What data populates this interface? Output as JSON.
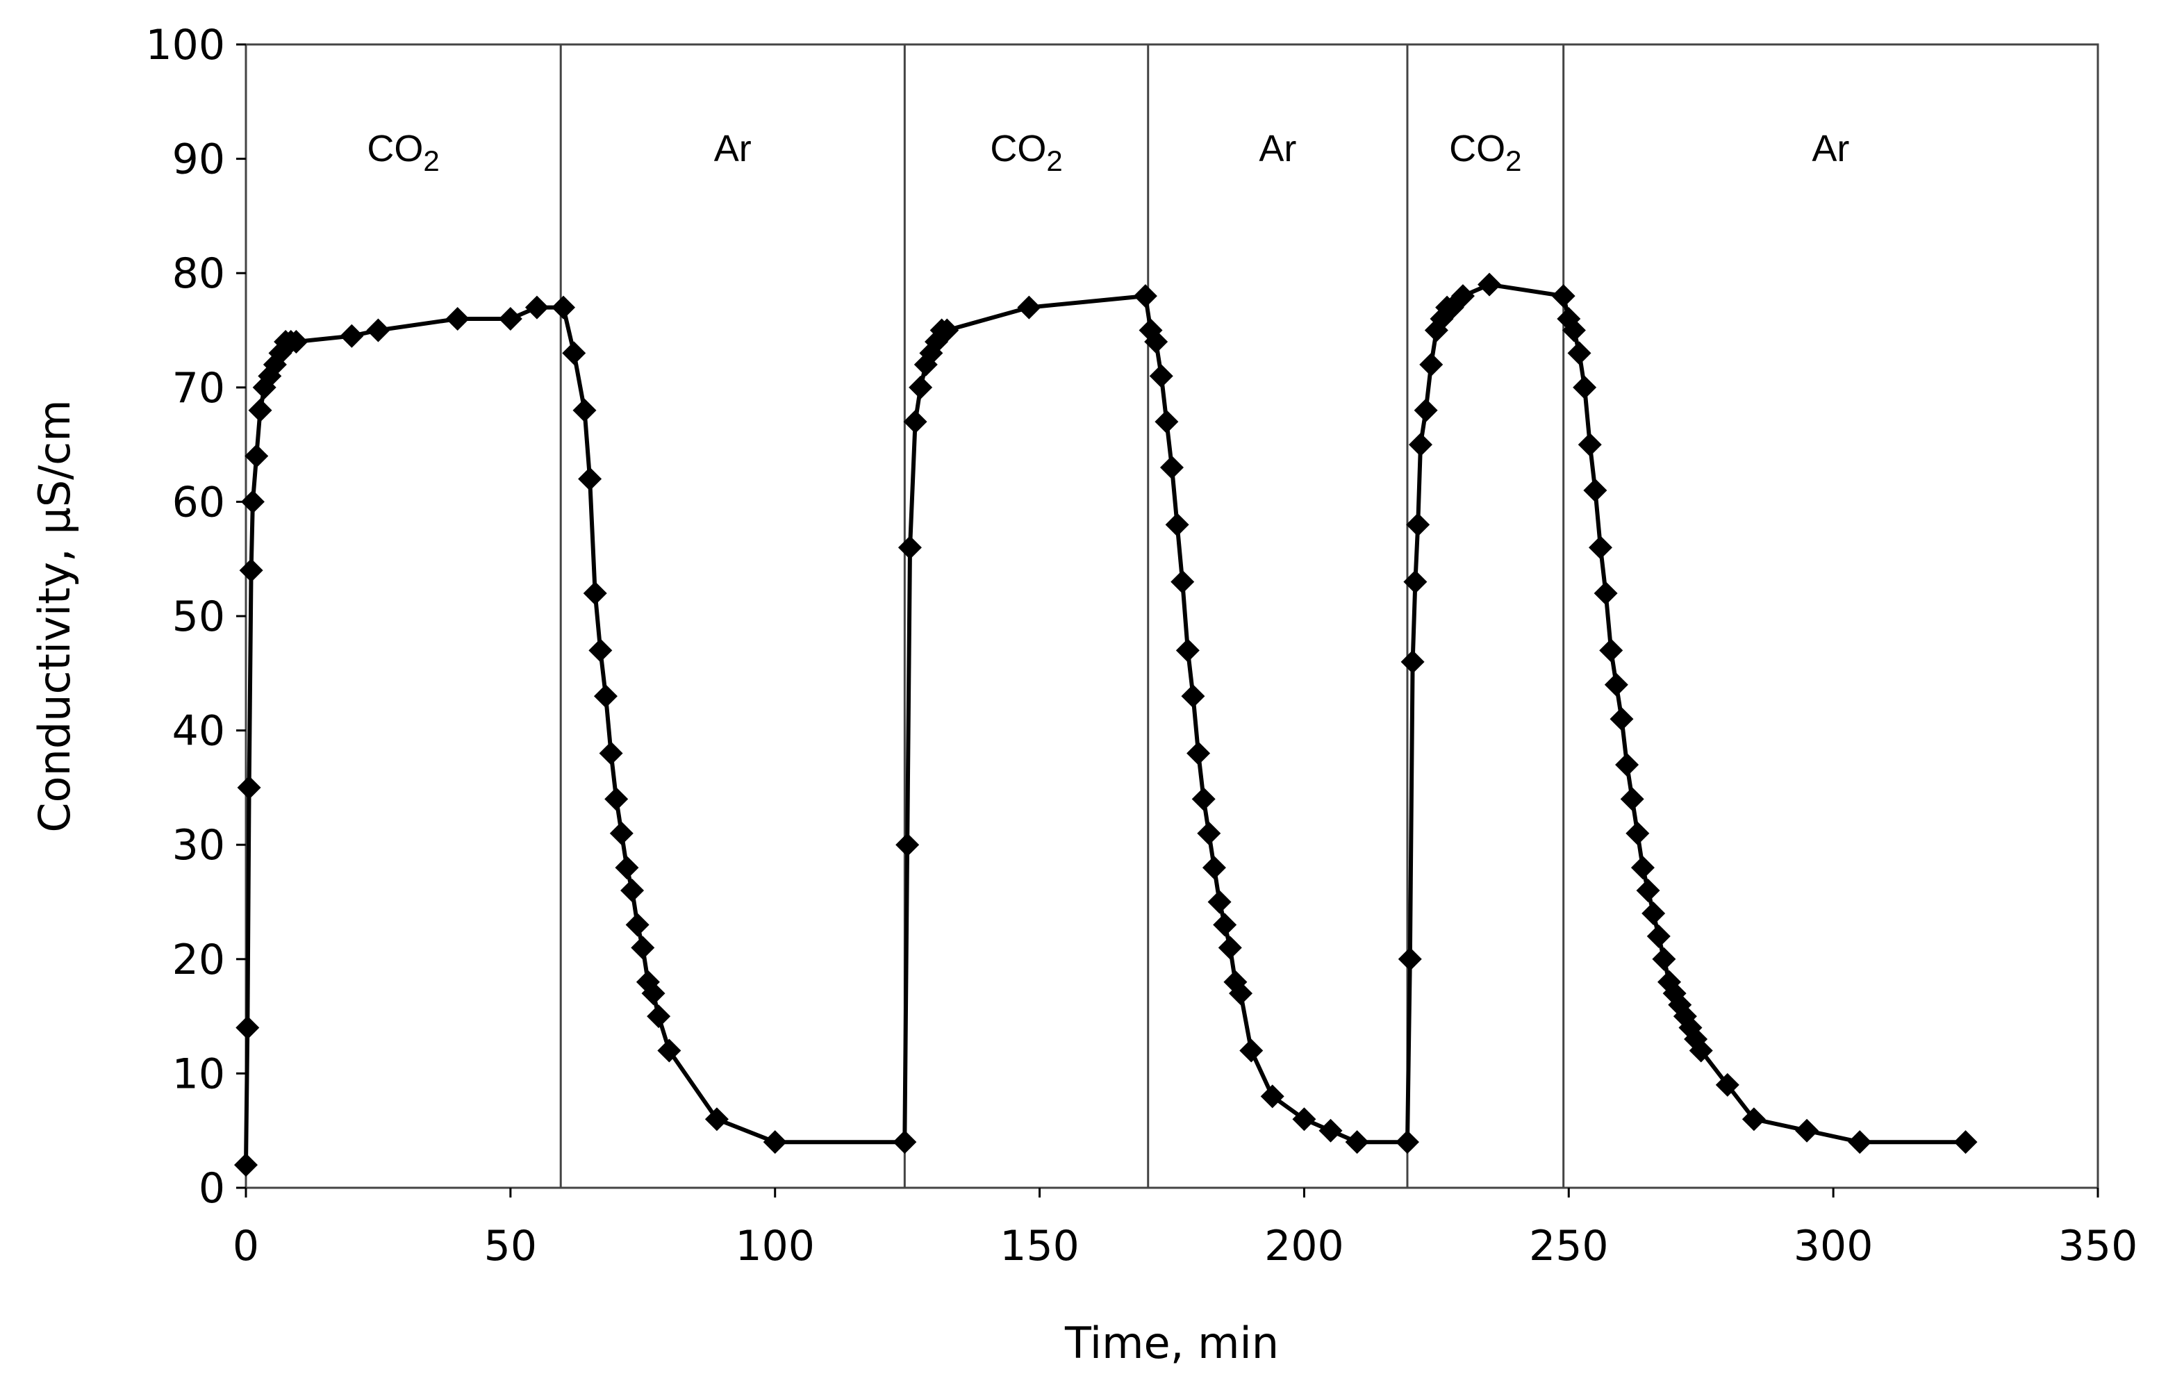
{
  "chart_data": {
    "type": "line",
    "title": "",
    "xlabel": "Time, min",
    "ylabel": "Conductivity, μS/cm",
    "xlim": [
      0,
      350
    ],
    "ylim": [
      0,
      100
    ],
    "x_ticks": [
      0,
      50,
      100,
      150,
      200,
      250,
      300,
      350
    ],
    "y_ticks": [
      0,
      10,
      20,
      30,
      40,
      50,
      60,
      70,
      80,
      90,
      100
    ],
    "grid": false,
    "legend": "none",
    "marker": "diamond",
    "color": "#000000",
    "dividers": [
      59.5,
      124.5,
      170.5,
      219.5,
      249
    ],
    "regions": [
      {
        "gas": "CO",
        "subscript": "2",
        "start": 0,
        "end": 59.5
      },
      {
        "gas": "Ar",
        "subscript": "",
        "start": 59.5,
        "end": 124.5
      },
      {
        "gas": "CO",
        "subscript": "2",
        "start": 124.5,
        "end": 170.5
      },
      {
        "gas": "Ar",
        "subscript": "",
        "start": 170.5,
        "end": 219.5
      },
      {
        "gas": "CO",
        "subscript": "2",
        "start": 219.5,
        "end": 249
      },
      {
        "gas": "Ar",
        "subscript": "",
        "start": 249,
        "end": 350
      }
    ],
    "series": [
      {
        "name": "Conductivity",
        "x": [
          0,
          0.3,
          0.6,
          1,
          1.3,
          2,
          2.7,
          3.5,
          4.5,
          5.5,
          6.5,
          7.5,
          8.5,
          9.5,
          20,
          25,
          40,
          50,
          55,
          60,
          62,
          64,
          65,
          66,
          67,
          68,
          69,
          70,
          71,
          72,
          73,
          74,
          75,
          76,
          77,
          78,
          80,
          89,
          100,
          124.5,
          125,
          125.5,
          126.5,
          127.5,
          128.5,
          129.5,
          130.5,
          131.5,
          132.5,
          148,
          170,
          171,
          172,
          173,
          174,
          175,
          176,
          177,
          178,
          179,
          180,
          181,
          182,
          183,
          184,
          185,
          186,
          187,
          188,
          190,
          194,
          200,
          205,
          210,
          219.5,
          220,
          220.5,
          221,
          221.5,
          222,
          223,
          224,
          225,
          226,
          227,
          228,
          230,
          235,
          249,
          250,
          251,
          252,
          253,
          254,
          255,
          256,
          257,
          258,
          259,
          260,
          261,
          262,
          263,
          264,
          265,
          266,
          267,
          268,
          269,
          270,
          271,
          272,
          273,
          274,
          275,
          280,
          285,
          295,
          305,
          325
        ],
        "y": [
          2,
          14,
          35,
          54,
          60,
          64,
          68,
          70,
          71,
          72,
          73,
          74,
          74,
          74,
          74.5,
          75,
          76,
          76,
          77,
          77,
          73,
          68,
          62,
          52,
          47,
          43,
          38,
          34,
          31,
          28,
          26,
          23,
          21,
          18,
          17,
          15,
          12,
          6,
          4,
          4,
          30,
          56,
          67,
          70,
          72,
          73,
          74,
          75,
          75,
          77,
          78,
          75,
          74,
          71,
          67,
          63,
          58,
          53,
          47,
          43,
          38,
          34,
          31,
          28,
          25,
          23,
          21,
          18,
          17,
          12,
          8,
          6,
          5,
          4,
          4,
          20,
          46,
          53,
          58,
          65,
          68,
          72,
          75,
          76,
          77,
          77,
          78,
          79,
          78,
          76,
          75,
          73,
          70,
          65,
          61,
          56,
          52,
          47,
          44,
          41,
          37,
          34,
          31,
          28,
          26,
          24,
          22,
          20,
          18,
          17,
          16,
          15,
          14,
          13,
          12,
          9,
          6,
          5,
          4,
          4
        ]
      }
    ]
  }
}
